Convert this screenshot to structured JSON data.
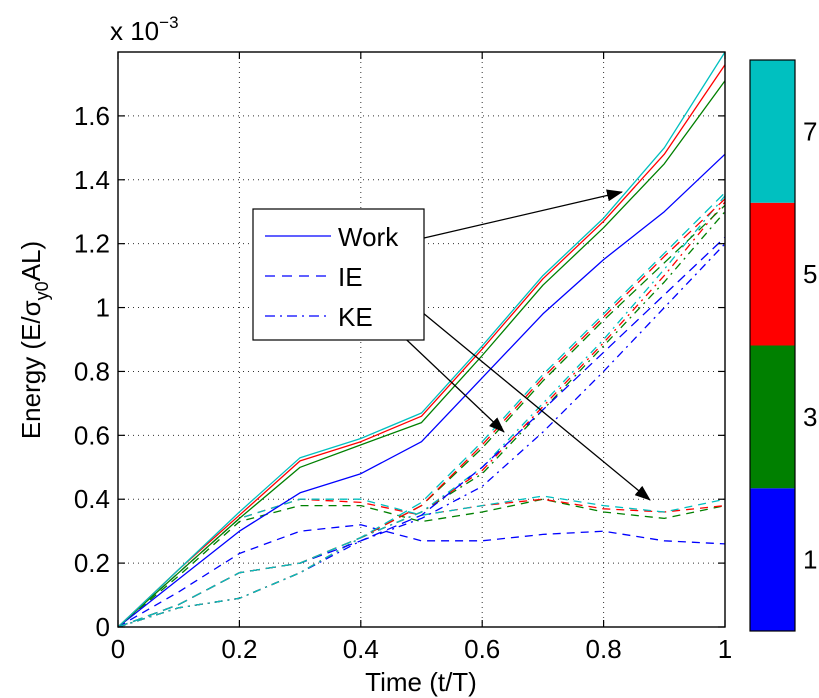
{
  "chart_data": {
    "type": "line",
    "xlabel": "Time (t/T)",
    "ylabel_parts": {
      "main": "Energy (E/σ",
      "sub": "y0",
      "rest": "AL)"
    },
    "y_multiplier": {
      "base": "x 10",
      "exponent": "−3"
    },
    "xlim": [
      0,
      1
    ],
    "ylim": [
      0,
      1.8
    ],
    "x_ticks": [
      0,
      0.2,
      0.4,
      0.6,
      0.8,
      1
    ],
    "x_tick_labels": [
      "0",
      "0.2",
      "0.4",
      "0.6",
      "0.8",
      "1"
    ],
    "y_ticks": [
      0,
      0.2,
      0.4,
      0.6,
      0.8,
      1,
      1.2,
      1.4,
      1.6
    ],
    "y_tick_labels": [
      "0",
      "0.2",
      "0.4",
      "0.6",
      "0.8",
      "1",
      "1.2",
      "1.4",
      "1.6"
    ],
    "grid": true,
    "legend": {
      "placement": "center-left",
      "entries": [
        {
          "label": "Work",
          "style": "solid"
        },
        {
          "label": "IE",
          "style": "dashed"
        },
        {
          "label": "KE",
          "style": "dashdot"
        }
      ]
    },
    "series_colors": [
      "#0000ff",
      "#008000",
      "#ff0000",
      "#00c0c0"
    ],
    "x": [
      0,
      0.1,
      0.2,
      0.3,
      0.4,
      0.5,
      0.6,
      0.7,
      0.8,
      0.9,
      1.0
    ],
    "work": [
      [
        0,
        0.15,
        0.3,
        0.42,
        0.48,
        0.58,
        0.78,
        0.98,
        1.15,
        1.3,
        1.48
      ],
      [
        0,
        0.17,
        0.34,
        0.5,
        0.57,
        0.64,
        0.85,
        1.07,
        1.25,
        1.45,
        1.71
      ],
      [
        0,
        0.18,
        0.35,
        0.52,
        0.58,
        0.66,
        0.87,
        1.09,
        1.27,
        1.48,
        1.76
      ],
      [
        0,
        0.18,
        0.36,
        0.53,
        0.59,
        0.67,
        0.88,
        1.1,
        1.28,
        1.5,
        1.8
      ]
    ],
    "ie": [
      [
        0,
        0.07,
        0.17,
        0.2,
        0.27,
        0.35,
        0.5,
        0.68,
        0.86,
        1.04,
        1.22
      ],
      [
        0,
        0.07,
        0.17,
        0.2,
        0.28,
        0.38,
        0.56,
        0.77,
        0.96,
        1.14,
        1.32
      ],
      [
        0,
        0.07,
        0.17,
        0.2,
        0.28,
        0.38,
        0.57,
        0.78,
        0.97,
        1.16,
        1.34
      ],
      [
        0,
        0.07,
        0.17,
        0.2,
        0.28,
        0.39,
        0.58,
        0.79,
        0.98,
        1.17,
        1.36
      ]
    ],
    "ke": [
      [
        0,
        0.06,
        0.09,
        0.17,
        0.27,
        0.34,
        0.44,
        0.61,
        0.8,
        1.0,
        1.2
      ],
      [
        0,
        0.06,
        0.09,
        0.17,
        0.28,
        0.36,
        0.48,
        0.68,
        0.88,
        1.08,
        1.3
      ],
      [
        0,
        0.06,
        0.09,
        0.17,
        0.28,
        0.36,
        0.49,
        0.69,
        0.89,
        1.1,
        1.33
      ],
      [
        0,
        0.06,
        0.09,
        0.17,
        0.28,
        0.36,
        0.5,
        0.7,
        0.9,
        1.12,
        1.35
      ]
    ],
    "ke_low": [
      [
        0,
        0.11,
        0.23,
        0.3,
        0.32,
        0.27,
        0.27,
        0.29,
        0.3,
        0.27,
        0.26
      ],
      [
        0,
        0.16,
        0.33,
        0.38,
        0.38,
        0.33,
        0.36,
        0.4,
        0.36,
        0.34,
        0.38
      ],
      [
        0,
        0.17,
        0.34,
        0.4,
        0.39,
        0.35,
        0.38,
        0.4,
        0.37,
        0.36,
        0.38
      ],
      [
        0,
        0.17,
        0.34,
        0.4,
        0.4,
        0.35,
        0.38,
        0.41,
        0.38,
        0.36,
        0.4
      ]
    ],
    "colorbar": {
      "colors": [
        "#0000ff",
        "#008000",
        "#ff0000",
        "#00c0c0"
      ],
      "tick_labels": [
        "1",
        "3",
        "5",
        "7"
      ]
    }
  }
}
